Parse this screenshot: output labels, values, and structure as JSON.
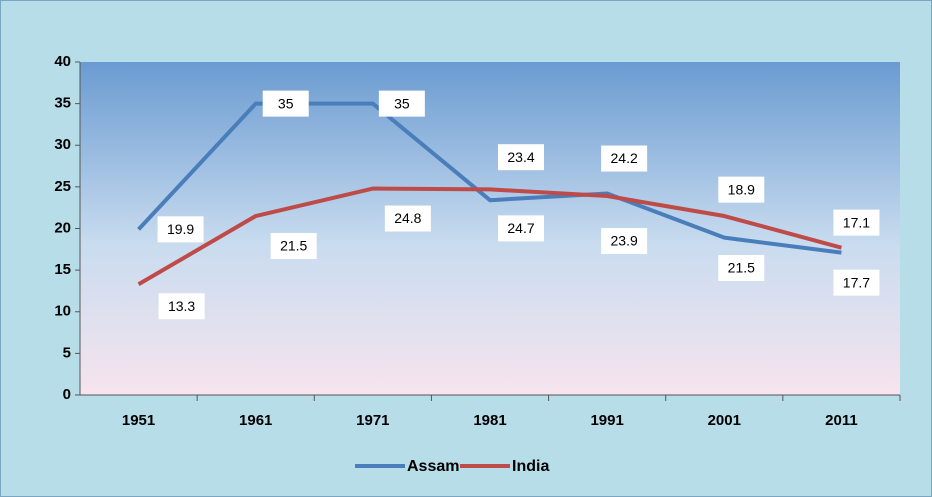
{
  "chart_data": {
    "type": "line",
    "categories": [
      "1951",
      "1961",
      "1971",
      "1981",
      "1991",
      "2001",
      "2011"
    ],
    "series": [
      {
        "name": "Assam",
        "color": "#4a7ebb",
        "values": [
          19.9,
          35,
          35,
          23.4,
          24.2,
          18.9,
          17.1
        ]
      },
      {
        "name": "India",
        "color": "#be4b48",
        "values": [
          13.3,
          21.5,
          24.8,
          24.7,
          23.9,
          21.5,
          17.7
        ]
      }
    ],
    "ylim": [
      0,
      40
    ],
    "yticks": [
      0,
      5,
      10,
      15,
      20,
      25,
      30,
      35,
      40
    ],
    "legend": "bottom"
  }
}
